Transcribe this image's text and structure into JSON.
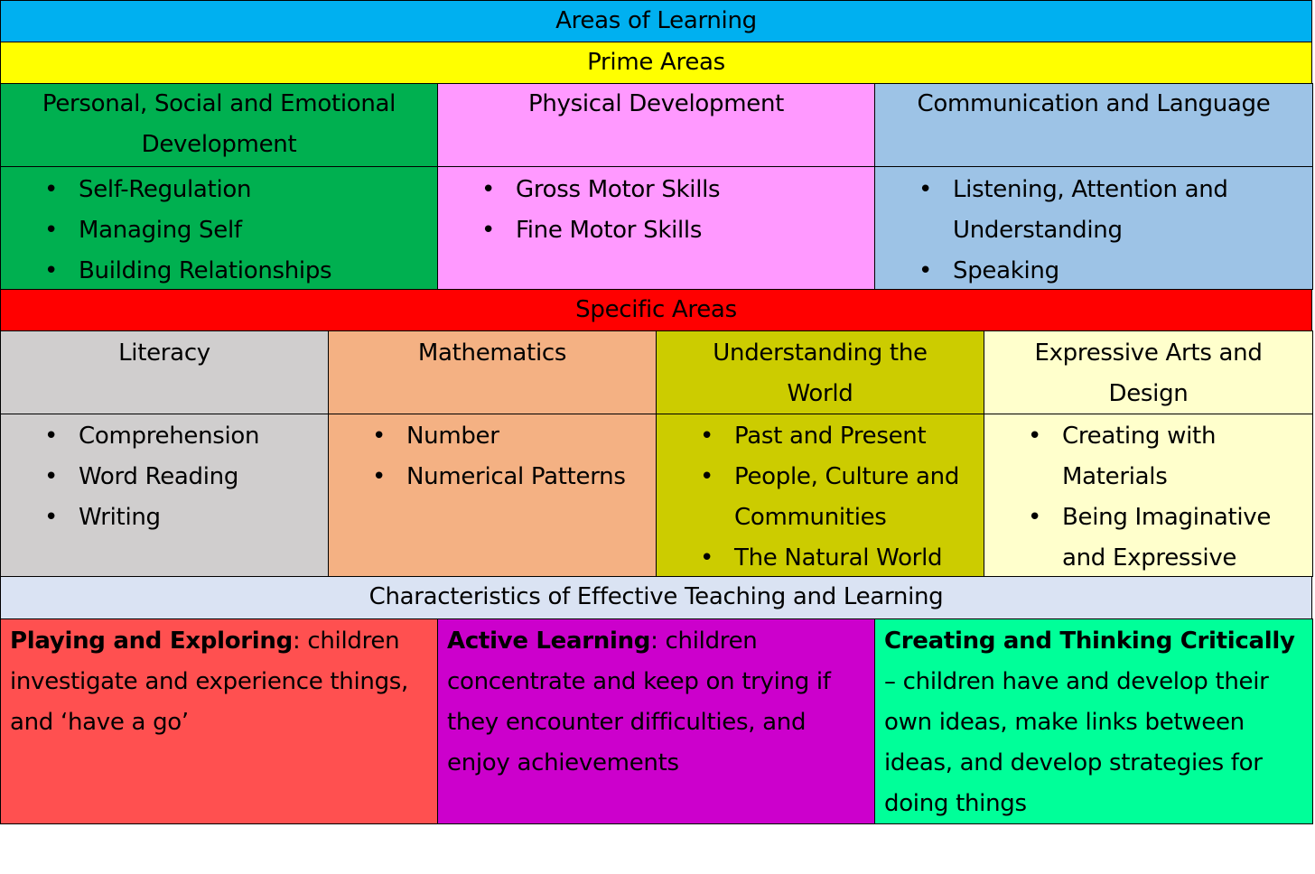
{
  "title": "Areas of Learning",
  "prime": {
    "heading": "Prime Areas",
    "colors": [
      "#00b050",
      "#ff99ff",
      "#9dc3e6"
    ],
    "areas": [
      {
        "name": "Personal, Social and Emotional Development",
        "items": [
          "Self-Regulation",
          "Managing Self",
          "Building Relationships"
        ]
      },
      {
        "name": "Physical Development",
        "items": [
          "Gross Motor Skills",
          "Fine Motor Skills"
        ]
      },
      {
        "name": "Communication and Language",
        "items": [
          "Listening, Attention and Understanding",
          "Speaking"
        ]
      }
    ]
  },
  "specific": {
    "heading": "Specific Areas",
    "colors": [
      "#d0cece",
      "#f4b183",
      "#cccc00",
      "#ffffcc"
    ],
    "areas": [
      {
        "name": "Literacy",
        "items": [
          "Comprehension",
          "Word Reading",
          "Writing"
        ]
      },
      {
        "name": "Mathematics",
        "items": [
          "Number",
          "Numerical Patterns"
        ]
      },
      {
        "name": "Understanding the World",
        "items": [
          "Past and Present",
          "People, Culture and Communities",
          "The Natural World"
        ]
      },
      {
        "name": "Expressive Arts and Design",
        "items": [
          "Creating with Materials",
          "Being Imaginative and Expressive"
        ]
      }
    ]
  },
  "characteristics": {
    "heading": "Characteristics of Effective Teaching and Learning",
    "colors": [
      "#ff5050",
      "#cc00cc",
      "#00ff99"
    ],
    "items": [
      {
        "term": "Playing and Exploring",
        "text": ": children investigate and experience things, and ‘have a go’"
      },
      {
        "term": "Active Learning",
        "text": ": children concentrate and keep on trying if they encounter difficulties, and enjoy achievements"
      },
      {
        "term": "Creating and Thinking Critically",
        "text": " – children have and develop their own ideas, make links between ideas, and develop strategies for doing things"
      }
    ]
  }
}
